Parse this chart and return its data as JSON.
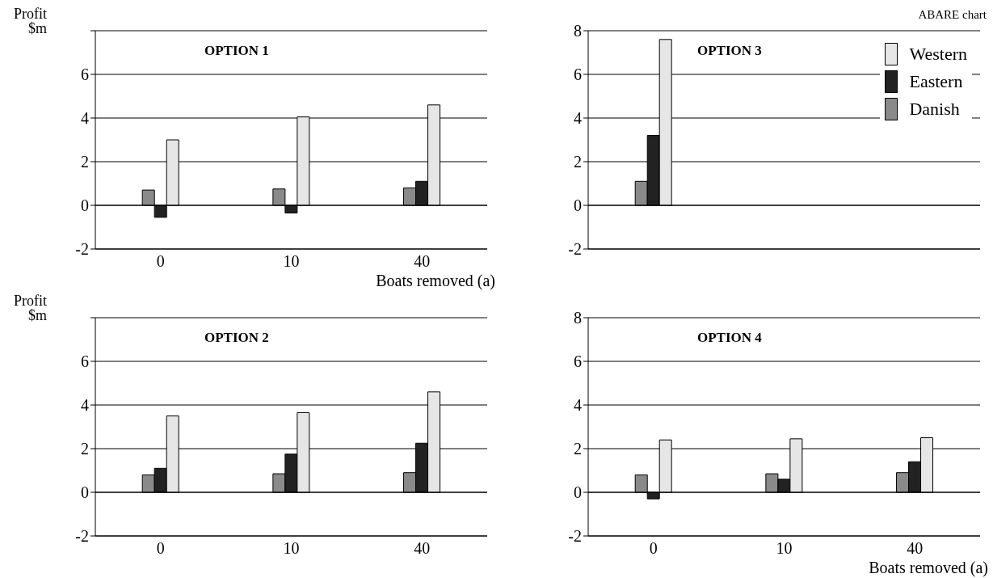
{
  "chart_data": [
    {
      "type": "bar",
      "title": "OPTION 1",
      "ylabel": "Profit $m",
      "xlabel": "Boats removed (a)",
      "categories": [
        "0",
        "10",
        "40"
      ],
      "series": [
        {
          "color": "#8a8a8a",
          "values": [
            0.7,
            0.75,
            0.8
          ]
        },
        {
          "color": "#222222",
          "values": [
            -0.55,
            -0.35,
            1.1
          ]
        },
        {
          "color": "#e6e6e6",
          "values": [
            3.0,
            4.05,
            4.6
          ]
        }
      ],
      "ylim": [
        -2,
        8
      ],
      "yticks": [
        -2,
        0,
        2,
        4,
        6,
        {
          "value": 8,
          "label": null
        }
      ],
      "grid": "y",
      "legend": false
    },
    {
      "type": "bar",
      "title": "OPTION 3",
      "annotations": [
        "ABARE chart"
      ],
      "categories": [
        null,
        null,
        null
      ],
      "series": [
        {
          "name": "Danish",
          "color": "#8a8a8a",
          "values": [
            1.1,
            null,
            null
          ]
        },
        {
          "name": "Eastern",
          "color": "#222222",
          "values": [
            3.2,
            null,
            null
          ]
        },
        {
          "name": "Western",
          "color": "#e6e6e6",
          "values": [
            7.6,
            null,
            null
          ]
        }
      ],
      "ylim": [
        -2,
        8
      ],
      "yticks": [
        -2,
        0,
        2,
        4,
        6,
        8
      ],
      "grid": "y",
      "legend": "top right",
      "tick_labels": "y"
    },
    {
      "type": "bar",
      "title": "OPTION 2",
      "ylabel": "Profit $m",
      "categories": [
        "0",
        "10",
        "40"
      ],
      "series": [
        {
          "color": "#8a8a8a",
          "values": [
            0.8,
            0.85,
            0.9
          ]
        },
        {
          "color": "#222222",
          "values": [
            1.1,
            1.75,
            2.25
          ]
        },
        {
          "color": "#e6e6e6",
          "values": [
            3.5,
            3.65,
            4.6
          ]
        }
      ],
      "ylim": [
        -2,
        8
      ],
      "yticks": [
        -2,
        0,
        2,
        4,
        6,
        {
          "value": 8,
          "label": null
        }
      ],
      "grid": "y",
      "legend": false
    },
    {
      "type": "bar",
      "title": "OPTION 4",
      "xlabel": "Boats removed (a)",
      "categories": [
        "0",
        "10",
        "40"
      ],
      "series": [
        {
          "color": "#8a8a8a",
          "values": [
            0.8,
            0.85,
            0.9
          ]
        },
        {
          "color": "#222222",
          "values": [
            -0.3,
            0.6,
            1.4
          ]
        },
        {
          "color": "#e6e6e6",
          "values": [
            2.4,
            2.45,
            2.5
          ]
        }
      ],
      "ylim": [
        -2,
        8
      ],
      "yticks": [
        -2,
        0,
        2,
        4,
        6,
        8
      ],
      "grid": "y",
      "legend": false
    }
  ]
}
